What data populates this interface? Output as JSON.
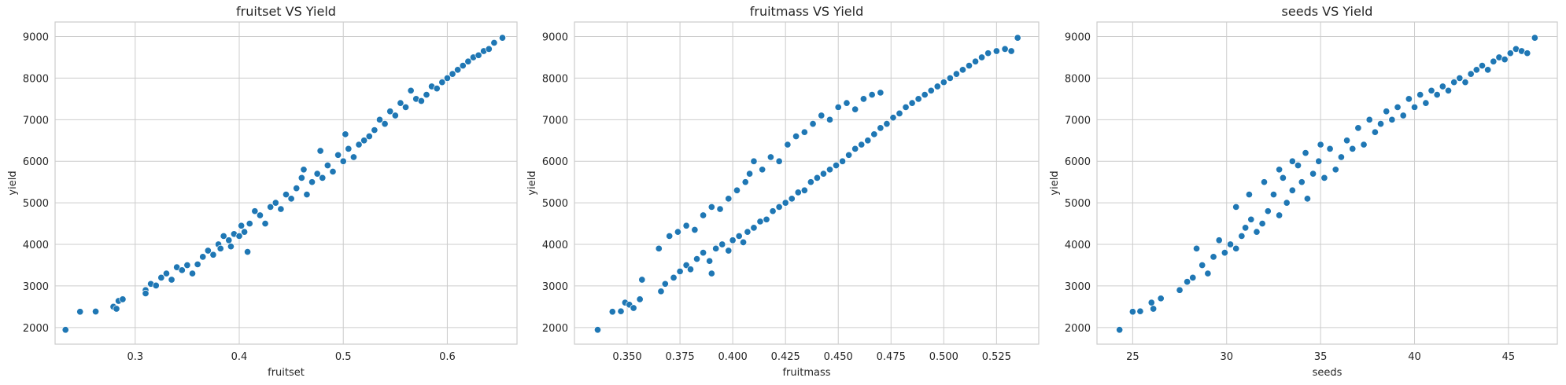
{
  "chart_data": [
    {
      "type": "scatter",
      "title": "fruitset VS Yield",
      "xlabel": "fruitset",
      "ylabel": "yield",
      "xlim": [
        0.223,
        0.667
      ],
      "ylim": [
        1600,
        9350
      ],
      "xticks": [
        "0.3",
        "0.4",
        "0.5",
        "0.6"
      ],
      "xtick_values": [
        0.3,
        0.4,
        0.5,
        0.6
      ],
      "yticks": [
        "2000",
        "3000",
        "4000",
        "5000",
        "6000",
        "7000",
        "8000",
        "9000"
      ],
      "ytick_values": [
        2000,
        3000,
        4000,
        5000,
        6000,
        7000,
        8000,
        9000
      ],
      "grid": true,
      "color": "#1f77b4",
      "points": [
        [
          0.233,
          1945
        ],
        [
          0.247,
          2380
        ],
        [
          0.262,
          2385
        ],
        [
          0.279,
          2500
        ],
        [
          0.282,
          2450
        ],
        [
          0.284,
          2640
        ],
        [
          0.288,
          2680
        ],
        [
          0.31,
          2900
        ],
        [
          0.31,
          2820
        ],
        [
          0.315,
          3050
        ],
        [
          0.32,
          3010
        ],
        [
          0.325,
          3200
        ],
        [
          0.33,
          3300
        ],
        [
          0.335,
          3150
        ],
        [
          0.34,
          3450
        ],
        [
          0.345,
          3380
        ],
        [
          0.35,
          3500
        ],
        [
          0.355,
          3300
        ],
        [
          0.36,
          3520
        ],
        [
          0.365,
          3700
        ],
        [
          0.37,
          3850
        ],
        [
          0.375,
          3750
        ],
        [
          0.38,
          4000
        ],
        [
          0.382,
          3900
        ],
        [
          0.385,
          4200
        ],
        [
          0.39,
          4100
        ],
        [
          0.392,
          3950
        ],
        [
          0.395,
          4250
        ],
        [
          0.4,
          4200
        ],
        [
          0.402,
          4450
        ],
        [
          0.405,
          4300
        ],
        [
          0.408,
          3820
        ],
        [
          0.41,
          4500
        ],
        [
          0.415,
          4800
        ],
        [
          0.42,
          4700
        ],
        [
          0.425,
          4500
        ],
        [
          0.43,
          4900
        ],
        [
          0.435,
          5000
        ],
        [
          0.44,
          4850
        ],
        [
          0.445,
          5200
        ],
        [
          0.45,
          5100
        ],
        [
          0.455,
          5350
        ],
        [
          0.46,
          5600
        ],
        [
          0.462,
          5800
        ],
        [
          0.465,
          5200
        ],
        [
          0.47,
          5500
        ],
        [
          0.475,
          5700
        ],
        [
          0.478,
          6250
        ],
        [
          0.48,
          5600
        ],
        [
          0.485,
          5900
        ],
        [
          0.49,
          5750
        ],
        [
          0.495,
          6150
        ],
        [
          0.5,
          6000
        ],
        [
          0.502,
          6650
        ],
        [
          0.505,
          6300
        ],
        [
          0.51,
          6100
        ],
        [
          0.515,
          6400
        ],
        [
          0.52,
          6500
        ],
        [
          0.525,
          6600
        ],
        [
          0.53,
          6750
        ],
        [
          0.535,
          7000
        ],
        [
          0.54,
          6900
        ],
        [
          0.545,
          7200
        ],
        [
          0.55,
          7100
        ],
        [
          0.555,
          7400
        ],
        [
          0.56,
          7300
        ],
        [
          0.565,
          7700
        ],
        [
          0.57,
          7500
        ],
        [
          0.575,
          7450
        ],
        [
          0.58,
          7600
        ],
        [
          0.585,
          7800
        ],
        [
          0.59,
          7750
        ],
        [
          0.595,
          7900
        ],
        [
          0.6,
          8000
        ],
        [
          0.605,
          8100
        ],
        [
          0.61,
          8200
        ],
        [
          0.615,
          8300
        ],
        [
          0.62,
          8400
        ],
        [
          0.625,
          8500
        ],
        [
          0.63,
          8550
        ],
        [
          0.635,
          8650
        ],
        [
          0.64,
          8700
        ],
        [
          0.645,
          8850
        ],
        [
          0.653,
          8970
        ]
      ]
    },
    {
      "type": "scatter",
      "title": "fruitmass VS Yield",
      "xlabel": "fruitmass",
      "ylabel": "yield",
      "xlim": [
        0.325,
        0.545
      ],
      "ylim": [
        1600,
        9350
      ],
      "xticks": [
        "0.350",
        "0.375",
        "0.400",
        "0.425",
        "0.450",
        "0.475",
        "0.500",
        "0.525"
      ],
      "xtick_values": [
        0.35,
        0.375,
        0.4,
        0.425,
        0.45,
        0.475,
        0.5,
        0.525
      ],
      "yticks": [
        "2000",
        "3000",
        "4000",
        "5000",
        "6000",
        "7000",
        "8000",
        "9000"
      ],
      "ytick_values": [
        2000,
        3000,
        4000,
        5000,
        6000,
        7000,
        8000,
        9000
      ],
      "grid": true,
      "color": "#1f77b4",
      "points": [
        [
          0.336,
          1945
        ],
        [
          0.343,
          2380
        ],
        [
          0.347,
          2390
        ],
        [
          0.349,
          2600
        ],
        [
          0.351,
          2550
        ],
        [
          0.353,
          2470
        ],
        [
          0.356,
          2680
        ],
        [
          0.357,
          3150
        ],
        [
          0.365,
          3900
        ],
        [
          0.366,
          2870
        ],
        [
          0.368,
          3050
        ],
        [
          0.372,
          3200
        ],
        [
          0.375,
          3350
        ],
        [
          0.378,
          3500
        ],
        [
          0.38,
          3400
        ],
        [
          0.383,
          3650
        ],
        [
          0.386,
          3800
        ],
        [
          0.389,
          3600
        ],
        [
          0.39,
          3300
        ],
        [
          0.392,
          3900
        ],
        [
          0.395,
          4000
        ],
        [
          0.398,
          3850
        ],
        [
          0.4,
          4100
        ],
        [
          0.403,
          4200
        ],
        [
          0.405,
          4050
        ],
        [
          0.407,
          4300
        ],
        [
          0.41,
          4400
        ],
        [
          0.413,
          4550
        ],
        [
          0.416,
          4600
        ],
        [
          0.419,
          4800
        ],
        [
          0.422,
          4900
        ],
        [
          0.425,
          5000
        ],
        [
          0.428,
          5100
        ],
        [
          0.431,
          5250
        ],
        [
          0.434,
          5300
        ],
        [
          0.437,
          5500
        ],
        [
          0.44,
          5600
        ],
        [
          0.443,
          5700
        ],
        [
          0.446,
          5800
        ],
        [
          0.449,
          5900
        ],
        [
          0.452,
          6000
        ],
        [
          0.455,
          6150
        ],
        [
          0.458,
          6300
        ],
        [
          0.461,
          6400
        ],
        [
          0.464,
          6500
        ],
        [
          0.467,
          6650
        ],
        [
          0.47,
          6800
        ],
        [
          0.473,
          6900
        ],
        [
          0.476,
          7050
        ],
        [
          0.479,
          7150
        ],
        [
          0.482,
          7300
        ],
        [
          0.485,
          7400
        ],
        [
          0.488,
          7500
        ],
        [
          0.491,
          7600
        ],
        [
          0.494,
          7700
        ],
        [
          0.497,
          7800
        ],
        [
          0.5,
          7900
        ],
        [
          0.503,
          8000
        ],
        [
          0.506,
          8100
        ],
        [
          0.509,
          8200
        ],
        [
          0.512,
          8300
        ],
        [
          0.515,
          8400
        ],
        [
          0.518,
          8500
        ],
        [
          0.521,
          8600
        ],
        [
          0.525,
          8650
        ],
        [
          0.529,
          8700
        ],
        [
          0.532,
          8650
        ],
        [
          0.535,
          8970
        ],
        [
          0.37,
          4200
        ],
        [
          0.374,
          4300
        ],
        [
          0.378,
          4450
        ],
        [
          0.382,
          4350
        ],
        [
          0.386,
          4700
        ],
        [
          0.39,
          4900
        ],
        [
          0.394,
          4850
        ],
        [
          0.398,
          5100
        ],
        [
          0.402,
          5300
        ],
        [
          0.406,
          5500
        ],
        [
          0.408,
          5700
        ],
        [
          0.41,
          6000
        ],
        [
          0.414,
          5800
        ],
        [
          0.418,
          6100
        ],
        [
          0.422,
          6000
        ],
        [
          0.426,
          6400
        ],
        [
          0.43,
          6600
        ],
        [
          0.434,
          6700
        ],
        [
          0.438,
          6900
        ],
        [
          0.442,
          7100
        ],
        [
          0.446,
          7000
        ],
        [
          0.45,
          7300
        ],
        [
          0.454,
          7400
        ],
        [
          0.458,
          7250
        ],
        [
          0.462,
          7500
        ],
        [
          0.466,
          7600
        ],
        [
          0.47,
          7650
        ]
      ]
    },
    {
      "type": "scatter",
      "title": "seeds VS Yield",
      "xlabel": "seeds",
      "ylabel": "yield",
      "xlim": [
        23.1,
        47.6
      ],
      "ylim": [
        1600,
        9350
      ],
      "xticks": [
        "25",
        "30",
        "35",
        "40",
        "45"
      ],
      "xtick_values": [
        25,
        30,
        35,
        40,
        45
      ],
      "yticks": [
        "2000",
        "3000",
        "4000",
        "5000",
        "6000",
        "7000",
        "8000",
        "9000"
      ],
      "ytick_values": [
        2000,
        3000,
        4000,
        5000,
        6000,
        7000,
        8000,
        9000
      ],
      "grid": true,
      "color": "#1f77b4",
      "points": [
        [
          24.3,
          1945
        ],
        [
          25.0,
          2380
        ],
        [
          25.4,
          2390
        ],
        [
          26.0,
          2600
        ],
        [
          26.5,
          2700
        ],
        [
          26.1,
          2450
        ],
        [
          27.5,
          2900
        ],
        [
          27.9,
          3100
        ],
        [
          28.2,
          3200
        ],
        [
          28.4,
          3900
        ],
        [
          28.7,
          3500
        ],
        [
          29.0,
          3300
        ],
        [
          29.3,
          3700
        ],
        [
          29.6,
          4100
        ],
        [
          29.9,
          3800
        ],
        [
          30.2,
          4000
        ],
        [
          30.5,
          3900
        ],
        [
          30.8,
          4200
        ],
        [
          31.0,
          4400
        ],
        [
          31.3,
          4600
        ],
        [
          31.6,
          4300
        ],
        [
          31.9,
          4500
        ],
        [
          32.2,
          4800
        ],
        [
          32.5,
          5200
        ],
        [
          32.8,
          4700
        ],
        [
          33.0,
          5600
        ],
        [
          33.2,
          5000
        ],
        [
          33.5,
          5300
        ],
        [
          33.8,
          5900
        ],
        [
          34.0,
          5500
        ],
        [
          34.3,
          5100
        ],
        [
          34.6,
          5700
        ],
        [
          34.9,
          6000
        ],
        [
          35.2,
          5600
        ],
        [
          35.5,
          6300
        ],
        [
          35.8,
          5800
        ],
        [
          36.1,
          6100
        ],
        [
          36.4,
          6500
        ],
        [
          36.7,
          6300
        ],
        [
          37.0,
          6800
        ],
        [
          37.3,
          6400
        ],
        [
          37.6,
          7000
        ],
        [
          37.9,
          6700
        ],
        [
          38.2,
          6900
        ],
        [
          38.5,
          7200
        ],
        [
          38.8,
          7000
        ],
        [
          39.1,
          7300
        ],
        [
          39.4,
          7100
        ],
        [
          39.7,
          7500
        ],
        [
          40.0,
          7300
        ],
        [
          40.3,
          7600
        ],
        [
          40.6,
          7400
        ],
        [
          40.9,
          7700
        ],
        [
          41.2,
          7600
        ],
        [
          41.5,
          7800
        ],
        [
          41.8,
          7700
        ],
        [
          42.1,
          7900
        ],
        [
          42.4,
          8000
        ],
        [
          42.7,
          7900
        ],
        [
          43.0,
          8100
        ],
        [
          43.3,
          8200
        ],
        [
          43.6,
          8300
        ],
        [
          43.9,
          8200
        ],
        [
          44.2,
          8400
        ],
        [
          44.5,
          8500
        ],
        [
          44.8,
          8450
        ],
        [
          45.1,
          8600
        ],
        [
          45.4,
          8700
        ],
        [
          45.7,
          8650
        ],
        [
          46.0,
          8600
        ],
        [
          46.4,
          8970
        ],
        [
          30.5,
          4900
        ],
        [
          31.2,
          5200
        ],
        [
          32.0,
          5500
        ],
        [
          32.8,
          5800
        ],
        [
          33.5,
          6000
        ],
        [
          34.2,
          6200
        ],
        [
          35.0,
          6400
        ]
      ]
    }
  ]
}
